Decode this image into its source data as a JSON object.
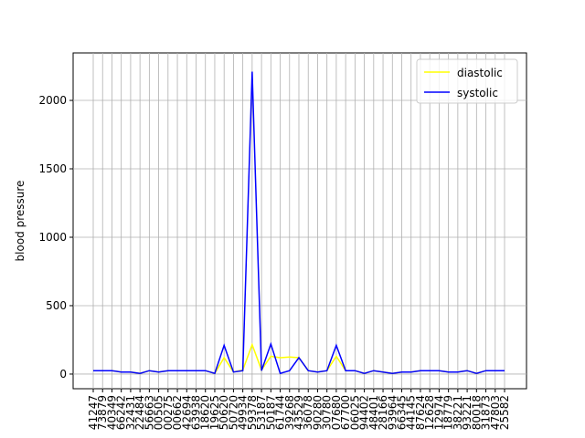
{
  "chart_data": {
    "type": "line",
    "ylabel": "blood pressure",
    "categories": [
      "41247",
      "73879",
      "40349",
      "66242",
      "32431",
      "22484",
      "56663",
      "00505",
      "00275",
      "00662",
      "42694",
      "63938",
      "18620",
      "19625",
      "50620",
      "50720",
      "49934",
      "59378",
      "53187",
      "50187",
      "61744",
      "39268",
      "43529",
      "36078",
      "90280",
      "30780",
      "07680",
      "67700",
      "06025",
      "94402",
      "48401",
      "28166",
      "93964",
      "66345",
      "44145",
      "87624",
      "12628",
      "12974",
      "18779",
      "38221",
      "93221",
      "80018",
      "31873",
      "47803",
      "25582"
    ],
    "series": [
      {
        "name": "diastolic",
        "color": "#ffff00",
        "values": [
          25,
          25,
          25,
          15,
          15,
          5,
          25,
          15,
          25,
          25,
          25,
          25,
          25,
          5,
          120,
          15,
          30,
          215,
          30,
          130,
          120,
          125,
          120,
          25,
          15,
          25,
          130,
          25,
          25,
          5,
          25,
          15,
          5,
          15,
          15,
          25,
          25,
          25,
          15,
          15,
          25,
          5,
          25,
          25,
          25
        ]
      },
      {
        "name": "systolic",
        "color": "#0000ff",
        "values": [
          25,
          25,
          25,
          15,
          15,
          5,
          25,
          15,
          25,
          25,
          25,
          25,
          25,
          5,
          210,
          15,
          25,
          2210,
          25,
          220,
          5,
          25,
          120,
          25,
          15,
          25,
          210,
          25,
          25,
          5,
          25,
          15,
          5,
          15,
          15,
          25,
          25,
          25,
          15,
          15,
          25,
          5,
          25,
          25,
          25
        ]
      }
    ],
    "ylim": [
      -107,
      2347
    ],
    "yticks": [
      0,
      500,
      1000,
      1500,
      2000
    ],
    "grid": true,
    "legend": "upper right"
  }
}
